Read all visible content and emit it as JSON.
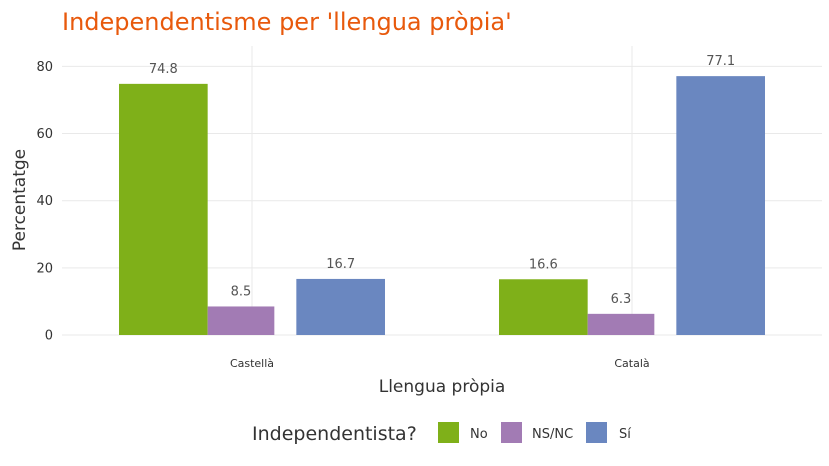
{
  "chart_data": {
    "type": "bar",
    "title": "Independentisme per 'llengua pròpia'",
    "xlabel": "Llengua pròpia",
    "ylabel": "Percentatge",
    "categories": [
      "Castellà",
      "Català"
    ],
    "series": [
      {
        "name": "No",
        "color": "#7fb019",
        "values": [
          74.8,
          16.6
        ],
        "labels": [
          "74.8",
          "16.6"
        ]
      },
      {
        "name": "NS/NC",
        "color": "#a27bb4",
        "values": [
          8.5,
          6.3
        ],
        "labels": [
          "8.5",
          "6.3"
        ]
      },
      {
        "name": "Sí",
        "color": "#6a87c0",
        "values": [
          16.7,
          77.1
        ],
        "labels": [
          "16.7",
          "77.1"
        ]
      }
    ],
    "yticks": [
      0,
      20,
      40,
      60,
      80
    ],
    "ylim": [
      0,
      85
    ],
    "legend": {
      "title": "Independentista?",
      "position": "bottom"
    },
    "grid": true
  }
}
